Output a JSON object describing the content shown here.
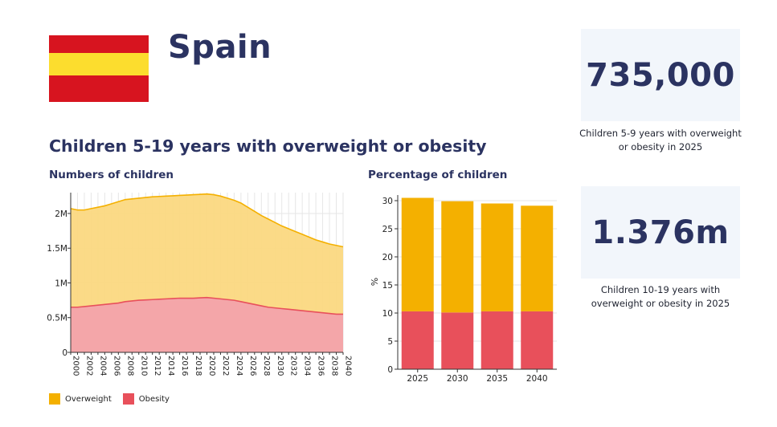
{
  "header": {
    "country": "Spain",
    "flag_colors": {
      "red": "#d7141f",
      "yellow": "#fcdd2e"
    }
  },
  "stats": [
    {
      "value": "735,000",
      "caption": "Children 5-9 years with overweight or obesity in 2025"
    },
    {
      "value": "1.376m",
      "caption": "Children 10-19 years with overweight or obesity in 2025"
    }
  ],
  "section_title": "Children 5-19 years with overweight or obesity",
  "legend": {
    "items": [
      {
        "label": "Overweight",
        "color": "#f4b000"
      },
      {
        "label": "Obesity",
        "color": "#e8505b"
      }
    ]
  },
  "chart_data": [
    {
      "type": "area",
      "title": "Numbers of children",
      "xlabel": "",
      "ylabel": "",
      "x": [
        2000,
        2001,
        2002,
        2003,
        2004,
        2005,
        2006,
        2007,
        2008,
        2009,
        2010,
        2011,
        2012,
        2013,
        2014,
        2015,
        2016,
        2017,
        2018,
        2019,
        2020,
        2021,
        2022,
        2023,
        2024,
        2025,
        2026,
        2027,
        2028,
        2029,
        2030,
        2031,
        2032,
        2033,
        2034,
        2035,
        2036,
        2037,
        2038,
        2039,
        2040
      ],
      "series": [
        {
          "name": "Overweight (total)",
          "color": "#f4b000",
          "values": [
            2.07,
            2.05,
            2.05,
            2.07,
            2.09,
            2.11,
            2.14,
            2.17,
            2.2,
            2.21,
            2.22,
            2.23,
            2.24,
            2.245,
            2.25,
            2.255,
            2.26,
            2.265,
            2.27,
            2.275,
            2.28,
            2.27,
            2.25,
            2.22,
            2.19,
            2.15,
            2.09,
            2.03,
            1.97,
            1.92,
            1.87,
            1.82,
            1.78,
            1.74,
            1.7,
            1.66,
            1.62,
            1.59,
            1.56,
            1.54,
            1.52
          ]
        },
        {
          "name": "Obesity",
          "color": "#e8505b",
          "values": [
            0.65,
            0.65,
            0.66,
            0.67,
            0.68,
            0.69,
            0.7,
            0.71,
            0.73,
            0.74,
            0.75,
            0.755,
            0.76,
            0.765,
            0.77,
            0.775,
            0.78,
            0.78,
            0.78,
            0.785,
            0.79,
            0.78,
            0.77,
            0.76,
            0.75,
            0.73,
            0.71,
            0.69,
            0.67,
            0.65,
            0.64,
            0.63,
            0.62,
            0.61,
            0.6,
            0.59,
            0.58,
            0.57,
            0.56,
            0.55,
            0.55
          ]
        }
      ],
      "ylim": [
        0,
        2.3
      ],
      "yticks": [
        {
          "v": 0,
          "label": "0"
        },
        {
          "v": 0.5,
          "label": "0.5M"
        },
        {
          "v": 1,
          "label": "1M"
        },
        {
          "v": 1.5,
          "label": "1.5M"
        },
        {
          "v": 2,
          "label": "2M"
        }
      ],
      "xtick_labels": [
        "2000",
        "2002",
        "2004",
        "2006",
        "2008",
        "2010",
        "2012",
        "2014",
        "2016",
        "2018",
        "2020",
        "2022",
        "2024",
        "2026",
        "2028",
        "2030",
        "2032",
        "2034",
        "2036",
        "2038",
        "2040"
      ],
      "grid": true
    },
    {
      "type": "bar",
      "title": "Percentage of children",
      "xlabel": "",
      "ylabel": "%",
      "categories": [
        "2025",
        "2030",
        "2035",
        "2040"
      ],
      "series": [
        {
          "name": "Obesity",
          "color": "#e8505b",
          "values": [
            10.3,
            10.1,
            10.3,
            10.3
          ]
        },
        {
          "name": "Overweight",
          "color": "#f4b000",
          "values": [
            20.2,
            19.8,
            19.2,
            18.8
          ]
        }
      ],
      "ylim": [
        0,
        31
      ],
      "yticks": [
        0,
        5,
        10,
        15,
        20,
        25,
        30
      ],
      "grid": true
    }
  ]
}
